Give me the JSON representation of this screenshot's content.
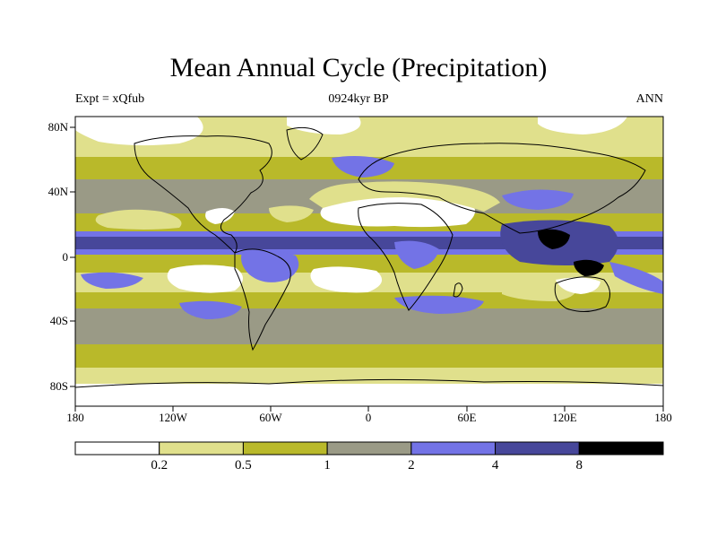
{
  "title": "Mean Annual Cycle (Precipitation)",
  "left_string": "Expt = xQfub",
  "center_string": "0924kyr BP",
  "right_string": "ANN",
  "lat_labels": [
    "80N",
    "40N",
    "0",
    "40S",
    "80S"
  ],
  "lon_labels": [
    "180",
    "120W",
    "60W",
    "0",
    "60E",
    "120E",
    "180"
  ],
  "colorbar": {
    "labels": [
      "0.2",
      "0.5",
      "1",
      "2",
      "4",
      "8"
    ],
    "colors": [
      "#ffffff",
      "#e0e08c",
      "#b9b92a",
      "#9a9a86",
      "#7373e6",
      "#47479a",
      "#000000"
    ]
  },
  "colors": {
    "white": "#ffffff",
    "light_yellow": "#e0e08c",
    "olive": "#b9b92a",
    "gray": "#9a9a86",
    "light_blue": "#7373e6",
    "dark_blue": "#47479a",
    "black": "#000000"
  }
}
